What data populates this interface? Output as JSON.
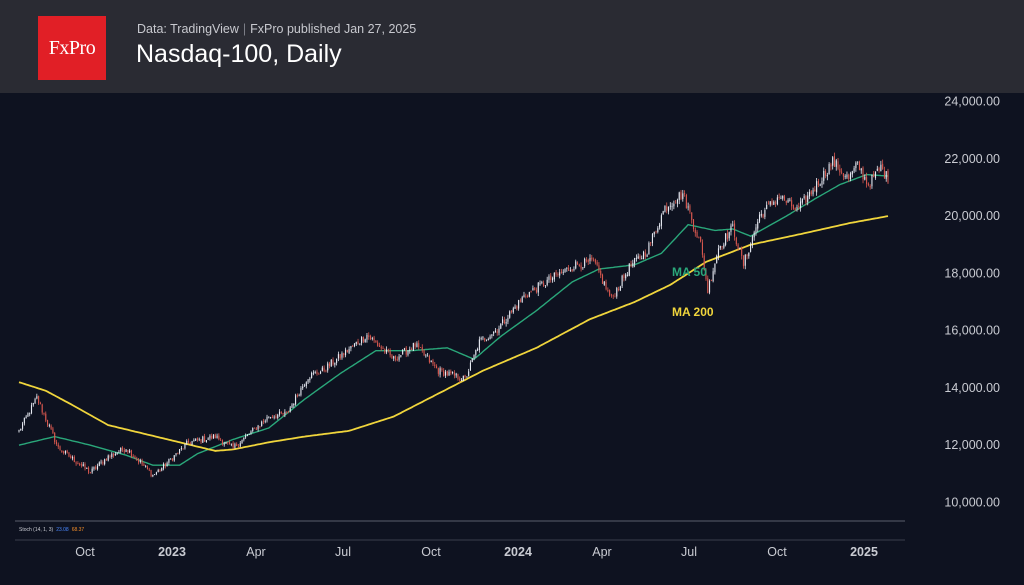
{
  "header": {
    "logo_text": "FxPro",
    "source_text": "Data: TradingView",
    "published_text": "FxPro published Jan 27, 2025",
    "title": "Nasdaq-100, Daily"
  },
  "indicator": {
    "label": "Stoch (14, 1, 3)",
    "value_k": "23.08",
    "value_d": "68.37"
  },
  "colors": {
    "background": "#0e1220",
    "header": "#2a2b33",
    "logo": "#e11f26",
    "up_candle": "#e7eaf3",
    "down_candle": "#d9584f",
    "ma50": "#2aa77a",
    "ma200": "#f0d53c"
  },
  "chart_data": {
    "type": "candlestick",
    "title": "Nasdaq-100, Daily",
    "ylim": [
      9700,
      24300
    ],
    "y_ticks": [
      "24,000.00",
      "22,000.00",
      "20,000.00",
      "18,000.00",
      "16,000.00",
      "14,000.00",
      "12,000.00",
      "10,000.00"
    ],
    "x_ticks": [
      {
        "label": "Oct",
        "bold": false
      },
      {
        "label": "2023",
        "bold": true
      },
      {
        "label": "Apr",
        "bold": false
      },
      {
        "label": "Jul",
        "bold": false
      },
      {
        "label": "Oct",
        "bold": false
      },
      {
        "label": "2024",
        "bold": true
      },
      {
        "label": "Apr",
        "bold": false
      },
      {
        "label": "Jul",
        "bold": false
      },
      {
        "label": "Oct",
        "bold": false
      },
      {
        "label": "2025",
        "bold": true
      }
    ],
    "price_anchors": [
      [
        0,
        12500
      ],
      [
        10,
        13650
      ],
      [
        22,
        11900
      ],
      [
        40,
        11050
      ],
      [
        50,
        11600
      ],
      [
        60,
        11900
      ],
      [
        75,
        10950
      ],
      [
        80,
        11200
      ],
      [
        95,
        12100
      ],
      [
        110,
        12300
      ],
      [
        120,
        11900
      ],
      [
        140,
        13000
      ],
      [
        150,
        13100
      ],
      [
        162,
        14400
      ],
      [
        170,
        14600
      ],
      [
        180,
        15100
      ],
      [
        195,
        15850
      ],
      [
        210,
        15000
      ],
      [
        222,
        15500
      ],
      [
        235,
        14600
      ],
      [
        250,
        14300
      ],
      [
        258,
        15600
      ],
      [
        268,
        16050
      ],
      [
        283,
        17200
      ],
      [
        298,
        17800
      ],
      [
        312,
        18300
      ],
      [
        322,
        18400
      ],
      [
        332,
        17100
      ],
      [
        342,
        18200
      ],
      [
        352,
        18800
      ],
      [
        362,
        20300
      ],
      [
        372,
        20800
      ],
      [
        382,
        19000
      ],
      [
        386,
        17400
      ],
      [
        392,
        18900
      ],
      [
        400,
        19600
      ],
      [
        406,
        18300
      ],
      [
        415,
        20000
      ],
      [
        426,
        20700
      ],
      [
        436,
        20200
      ],
      [
        446,
        21000
      ],
      [
        456,
        21900
      ],
      [
        465,
        21300
      ],
      [
        470,
        21800
      ],
      [
        476,
        21100
      ],
      [
        483,
        21700
      ],
      [
        487,
        21300
      ]
    ],
    "series": [
      {
        "name": "MA 50",
        "label": "MA 50",
        "color": "#2aa77a",
        "points": [
          [
            0,
            12000
          ],
          [
            20,
            12300
          ],
          [
            40,
            12000
          ],
          [
            60,
            11650
          ],
          [
            75,
            11300
          ],
          [
            90,
            11300
          ],
          [
            100,
            11700
          ],
          [
            120,
            12200
          ],
          [
            140,
            12600
          ],
          [
            160,
            13600
          ],
          [
            180,
            14500
          ],
          [
            200,
            15300
          ],
          [
            220,
            15300
          ],
          [
            240,
            15400
          ],
          [
            255,
            15000
          ],
          [
            270,
            15800
          ],
          [
            290,
            16700
          ],
          [
            310,
            17700
          ],
          [
            325,
            18150
          ],
          [
            345,
            18300
          ],
          [
            360,
            18700
          ],
          [
            375,
            19700
          ],
          [
            390,
            19500
          ],
          [
            400,
            19550
          ],
          [
            410,
            19300
          ],
          [
            430,
            20000
          ],
          [
            446,
            20600
          ],
          [
            460,
            21100
          ],
          [
            475,
            21450
          ],
          [
            487,
            21400
          ]
        ]
      },
      {
        "name": "MA 200",
        "label": "MA 200",
        "color": "#f0d53c",
        "points": [
          [
            0,
            14200
          ],
          [
            15,
            13900
          ],
          [
            30,
            13400
          ],
          [
            50,
            12700
          ],
          [
            70,
            12400
          ],
          [
            90,
            12100
          ],
          [
            110,
            11800
          ],
          [
            120,
            11850
          ],
          [
            140,
            12100
          ],
          [
            160,
            12300
          ],
          [
            185,
            12500
          ],
          [
            210,
            13000
          ],
          [
            235,
            13800
          ],
          [
            260,
            14600
          ],
          [
            290,
            15400
          ],
          [
            320,
            16400
          ],
          [
            345,
            17000
          ],
          [
            365,
            17600
          ],
          [
            385,
            18400
          ],
          [
            410,
            19000
          ],
          [
            440,
            19400
          ],
          [
            465,
            19750
          ],
          [
            487,
            20000
          ]
        ]
      }
    ],
    "annotations": [
      "MA 50",
      "MA 200"
    ]
  }
}
